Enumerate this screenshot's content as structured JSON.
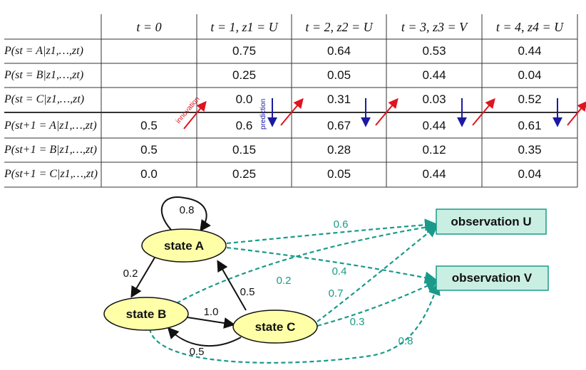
{
  "table": {
    "headers": [
      "t = 0",
      "t = 1, z1 = U",
      "t = 2, z2 = U",
      "t = 3, z3 = V",
      "t = 4, z4 = U"
    ],
    "rows": [
      {
        "label": "P(st = A|z1,…,zt)",
        "cells": [
          "",
          "0.75",
          "0.64",
          "0.53",
          "0.44"
        ]
      },
      {
        "label": "P(st = B|z1,…,zt)",
        "cells": [
          "",
          "0.25",
          "0.05",
          "0.44",
          "0.04"
        ]
      },
      {
        "label": "P(st = C|z1,…,zt)",
        "cells": [
          "",
          "0.0",
          "0.31",
          "0.03",
          "0.52"
        ]
      },
      {
        "label": "P(st+1 = A|z1,…,zt)",
        "cells": [
          "0.5",
          "0.6",
          "0.67",
          "0.44",
          "0.61"
        ]
      },
      {
        "label": "P(st+1 = B|z1,…,zt)",
        "cells": [
          "0.5",
          "0.15",
          "0.28",
          "0.12",
          "0.35"
        ]
      },
      {
        "label": "P(st+1 = C|z1,…,zt)",
        "cells": [
          "0.0",
          "0.25",
          "0.05",
          "0.44",
          "0.04"
        ]
      }
    ],
    "annotations": {
      "innovation": "innovation",
      "prediction": "prediction"
    },
    "colors": {
      "innovation_arrow": "#e0141e",
      "prediction_arrow": "#1a1aa0"
    }
  },
  "diagram": {
    "states": {
      "a": "state A",
      "b": "state B",
      "c": "state C"
    },
    "observations": {
      "u": "observation U",
      "v": "observation V"
    },
    "transitions": {
      "a_self": "0.8",
      "a_to_b": "0.2",
      "b_to_c": "1.0",
      "c_to_a": "0.5",
      "c_to_b": "0.5"
    },
    "emissions": {
      "a_u": "0.6",
      "a_v": "0.4",
      "b_u": "0.2",
      "c_u": "0.7",
      "c_v": "0.3",
      "b_v": "0.8"
    },
    "colors": {
      "state_fill": "#ffffa8",
      "observation_fill": "#c9efe2",
      "emission_line": "#1a9a8a",
      "transition_line": "#111111"
    }
  }
}
